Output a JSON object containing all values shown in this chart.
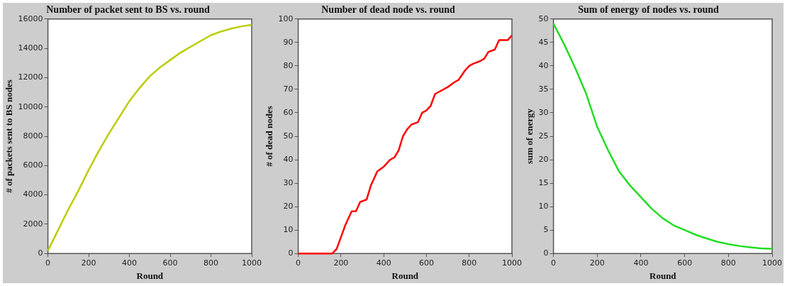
{
  "chart_data": [
    {
      "type": "line",
      "title": "Number of packet sent to BS vs. round",
      "xlabel": "Round",
      "ylabel": "# of packets sent to BS nodes",
      "x": [
        0,
        50,
        100,
        150,
        200,
        250,
        300,
        350,
        400,
        450,
        500,
        550,
        600,
        650,
        700,
        750,
        800,
        850,
        900,
        950,
        1000
      ],
      "series": [
        {
          "color": "#bccc00",
          "values": [
            200,
            1600,
            3000,
            4300,
            5700,
            7000,
            8200,
            9300,
            10400,
            11300,
            12100,
            12700,
            13200,
            13700,
            14100,
            14500,
            14900,
            15150,
            15350,
            15500,
            15600
          ]
        }
      ],
      "xlim": [
        0,
        1000
      ],
      "xticks": [
        0,
        200,
        400,
        600,
        800,
        1000
      ],
      "ylim": [
        0,
        16000
      ],
      "yticks": [
        0,
        2000,
        4000,
        6000,
        8000,
        10000,
        12000,
        14000,
        16000
      ],
      "grid": false,
      "marker": "none",
      "line_style": "solid"
    },
    {
      "type": "line",
      "title": "Number of dead node vs. round",
      "xlabel": "Round",
      "ylabel": "# of dead nodes",
      "x": [
        0,
        160,
        180,
        200,
        220,
        250,
        270,
        290,
        320,
        340,
        370,
        400,
        430,
        450,
        470,
        490,
        510,
        530,
        560,
        580,
        600,
        620,
        640,
        660,
        700,
        730,
        750,
        780,
        800,
        820,
        850,
        870,
        890,
        920,
        940,
        980,
        1000
      ],
      "series": [
        {
          "color": "#ff0000",
          "values": [
            0,
            0,
            2,
            7,
            12,
            18,
            18,
            22,
            23,
            29,
            35,
            37,
            40,
            41,
            44,
            50,
            53,
            55,
            56,
            60,
            61,
            63,
            68,
            69,
            71,
            73,
            74,
            78,
            80,
            81,
            82,
            83,
            86,
            87,
            91,
            91,
            93
          ]
        }
      ],
      "xlim": [
        0,
        1000
      ],
      "xticks": [
        0,
        200,
        400,
        600,
        800,
        1000
      ],
      "ylim": [
        0,
        100
      ],
      "yticks": [
        0,
        10,
        20,
        30,
        40,
        50,
        60,
        70,
        80,
        90,
        100
      ],
      "grid": false,
      "marker": "none",
      "line_style": "solid"
    },
    {
      "type": "line",
      "title": "Sum of energy of nodes vs. round",
      "xlabel": "Round",
      "ylabel": "sum of energy",
      "x": [
        0,
        50,
        100,
        150,
        200,
        250,
        300,
        350,
        400,
        450,
        500,
        550,
        600,
        650,
        700,
        750,
        800,
        850,
        900,
        950,
        1000
      ],
      "series": [
        {
          "color": "#22dd22",
          "values": [
            49,
            44.5,
            39.5,
            34,
            27,
            22,
            17.5,
            14.5,
            12,
            9.5,
            7.5,
            6,
            5,
            4,
            3.2,
            2.5,
            2,
            1.6,
            1.3,
            1.1,
            1
          ]
        }
      ],
      "xlim": [
        0,
        1000
      ],
      "xticks": [
        0,
        200,
        400,
        600,
        800,
        1000
      ],
      "ylim": [
        0,
        50
      ],
      "yticks": [
        0,
        5,
        10,
        15,
        20,
        25,
        30,
        35,
        40,
        45,
        50
      ],
      "grid": false,
      "marker": "none",
      "line_style": "solid"
    }
  ]
}
